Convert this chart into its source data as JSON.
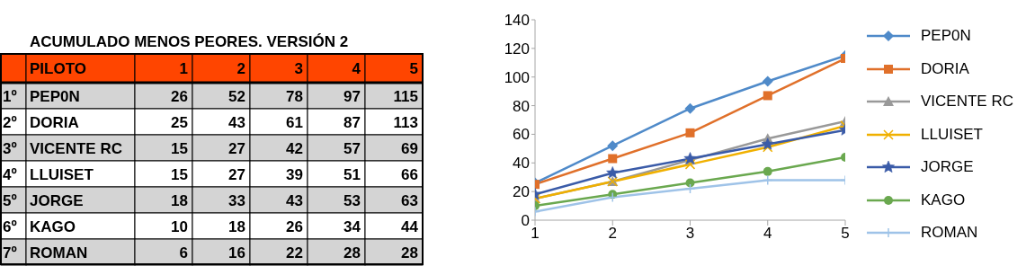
{
  "chart_data": [
    {
      "type": "heatmap",
      "title": "ACUMULADO MENOS PEORES. VERSIÓN 2",
      "ylabel": "PILOTO",
      "annotations": [
        "1º",
        "2º",
        "3º",
        "4º",
        "5º",
        "6º",
        "7º"
      ],
      "categories": [
        "1",
        "2",
        "3",
        "4",
        "5"
      ],
      "data_labels": true,
      "y_categories": [
        "PEP0N",
        "DORIA",
        "VICENTE RC",
        "LLUISET",
        "JORGE",
        "KAGO",
        "ROMAN"
      ],
      "cells": [
        [
          26,
          52,
          78,
          97,
          115
        ],
        [
          25,
          43,
          61,
          87,
          113
        ],
        [
          15,
          27,
          42,
          57,
          69
        ],
        [
          15,
          27,
          39,
          51,
          66
        ],
        [
          18,
          33,
          43,
          53,
          63
        ],
        [
          10,
          18,
          26,
          34,
          44
        ],
        [
          6,
          16,
          22,
          28,
          28
        ]
      ]
    },
    {
      "type": "line",
      "x": [
        1,
        2,
        3,
        4,
        5
      ],
      "xlim": [
        1,
        5
      ],
      "xticks": [
        1,
        2,
        3,
        4,
        5
      ],
      "ylim": [
        0,
        140
      ],
      "yticks": [
        0,
        20,
        40,
        60,
        80,
        100,
        120,
        140
      ],
      "grid": false,
      "legend": "right",
      "line_style": "solid",
      "series": [
        {
          "name": "PEP0N",
          "color": "#4f8ac9",
          "marker": "diamond",
          "values": [
            26,
            52,
            78,
            97,
            115
          ]
        },
        {
          "name": "DORIA",
          "color": "#e0702a",
          "marker": "square",
          "values": [
            25,
            43,
            61,
            87,
            113
          ]
        },
        {
          "name": "VICENTE RC",
          "color": "#999999",
          "marker": "triangle",
          "values": [
            15,
            27,
            42,
            57,
            69
          ]
        },
        {
          "name": "LLUISET",
          "color": "#f0b000",
          "marker": "cross",
          "values": [
            15,
            27,
            39,
            51,
            66
          ]
        },
        {
          "name": "JORGE",
          "color": "#3a5ba8",
          "marker": "star",
          "values": [
            18,
            33,
            43,
            53,
            63
          ]
        },
        {
          "name": "KAGO",
          "color": "#6aa84f",
          "marker": "circle",
          "values": [
            10,
            18,
            26,
            34,
            44
          ]
        },
        {
          "name": "ROMAN",
          "color": "#9fc3e8",
          "marker": "cross",
          "values": [
            6,
            16,
            22,
            28,
            28
          ]
        }
      ]
    }
  ]
}
